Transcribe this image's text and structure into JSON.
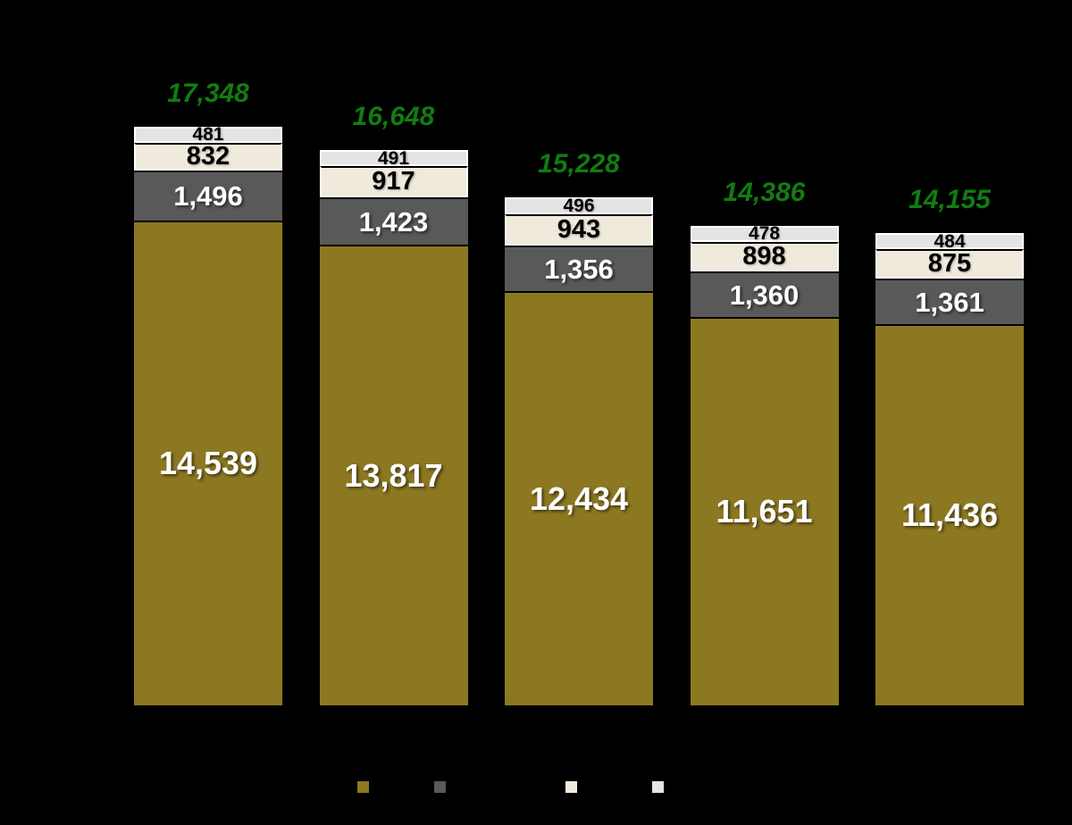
{
  "background_color": "#000000",
  "chart_data": {
    "type": "bar",
    "stacked": true,
    "orientation": "vertical",
    "categories": [
      "",
      "",
      "",
      "",
      ""
    ],
    "series": [
      {
        "name": "olive",
        "color": "#8D7822",
        "label_color": "white",
        "values": [
          14539,
          13817,
          12434,
          11651,
          11436
        ],
        "labels": [
          "14,539",
          "13,817",
          "12,434",
          "11,651",
          "11,436"
        ]
      },
      {
        "name": "dark-gray",
        "color": "#595959",
        "label_color": "white",
        "values": [
          1496,
          1423,
          1356,
          1360,
          1361
        ],
        "labels": [
          "1,496",
          "1,423",
          "1,356",
          "1,360",
          "1,361"
        ]
      },
      {
        "name": "cream",
        "color": "#F0EADC",
        "label_color": "black",
        "values": [
          832,
          917,
          943,
          898,
          875
        ],
        "labels": [
          "832",
          "917",
          "943",
          "898",
          "875"
        ]
      },
      {
        "name": "light-gray",
        "color": "#E4E4E4",
        "label_color": "black",
        "values": [
          481,
          491,
          496,
          478,
          484
        ],
        "labels": [
          "481",
          "491",
          "496",
          "478",
          "484"
        ]
      }
    ],
    "totals": [
      17348,
      16648,
      15228,
      14386,
      14155
    ],
    "total_labels": [
      "17,348",
      "16,648",
      "15,228",
      "14,386",
      "14,155"
    ],
    "total_label_color": "#117C11",
    "axis_visible": false,
    "gridlines": false,
    "legend_position": "bottom",
    "legend_swatch_colors": [
      "#8D7822",
      "#595959",
      "#F0EADC",
      "#E4E4E4"
    ]
  }
}
